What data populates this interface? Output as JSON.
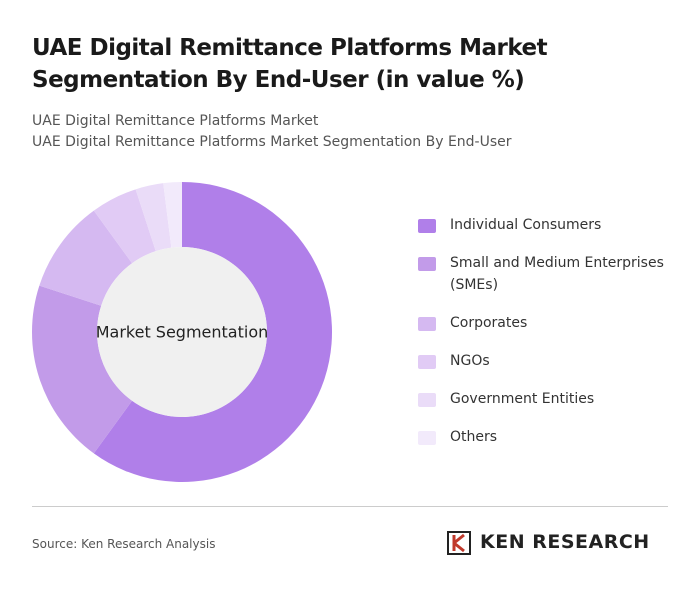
{
  "chart_data": {
    "type": "donut",
    "title": "UAE Digital Remittance Platforms Market Segmentation By End-User (in value %)",
    "subtitle": [
      "UAE Digital Remittance Platforms Market",
      "UAE Digital Remittance Platforms Market Segmentation By End-User"
    ],
    "center_label": "Market Segmentation",
    "categories": [
      "Individual Consumers",
      "Small and Medium Enterprises (SMEs)",
      "Corporates",
      "NGOs",
      "Government Entities",
      "Others"
    ],
    "values": [
      60,
      20,
      10,
      5,
      3,
      2
    ],
    "colors": [
      "#b07fe9",
      "#c29be9",
      "#d5b9f1",
      "#e1cbf5",
      "#eadcf8",
      "#f2eafb"
    ],
    "source": "Source: Ken Research Analysis",
    "brand": "KEN RESEARCH"
  }
}
